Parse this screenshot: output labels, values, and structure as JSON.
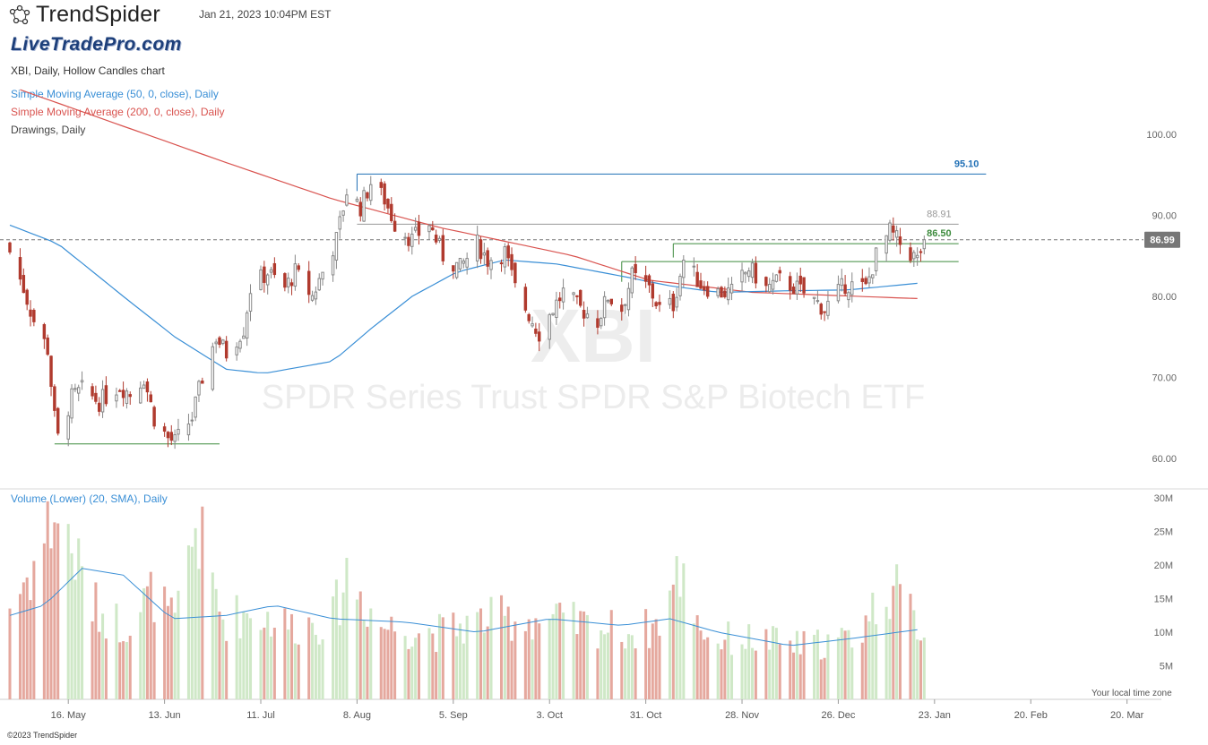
{
  "header": {
    "brand_name": "TrendSpider",
    "logo_icon": "trendspider-logo-icon",
    "timestamp": "Jan 21, 2023 10:04PM EST",
    "watermark_brand": "LiveTradePro.com",
    "chart_title": "XBI, Daily, Hollow Candles chart",
    "legend_sma50": "Simple Moving Average (50, 0, close), Daily",
    "legend_sma200": "Simple Moving Average (200, 0, close), Daily",
    "legend_drawings": "Drawings, Daily",
    "volume_title": "Volume (Lower) (20, SMA), Daily",
    "time_zone_note": "Your local time zone",
    "copyright": "©2023 TrendSpider"
  },
  "watermark": {
    "ticker": "XBI",
    "name": "SPDR Series Trust SPDR S&P Biotech ETF"
  },
  "colors": {
    "up": "#888888",
    "down": "#b03a2e",
    "sma50": "#3a8fd6",
    "sma200": "#d9534f",
    "vol_up": "#cfe8c7",
    "vol_down": "#e5a89e",
    "support": "#3d8b3d",
    "resist_blue": "#1f6fb5",
    "resist_gray": "#999999"
  },
  "chart_data": {
    "type": "candlestick",
    "price_axis": {
      "min": 60,
      "max": 100,
      "ticks": [
        100,
        90,
        80,
        70,
        60
      ],
      "tick_labels": [
        "100.00",
        "90.00",
        "80.00",
        "70.00",
        "60.00"
      ]
    },
    "volume_axis": {
      "min": 0,
      "max": 30,
      "unit": "M",
      "ticks": [
        30,
        25,
        20,
        15,
        10,
        5
      ],
      "tick_labels": [
        "30M",
        "25M",
        "20M",
        "15M",
        "10M",
        "5M"
      ]
    },
    "x_axis_labels": [
      {
        "label": "16. May",
        "date": "2022-05-16"
      },
      {
        "label": "13. Jun",
        "date": "2022-06-13"
      },
      {
        "label": "11. Jul",
        "date": "2022-07-11"
      },
      {
        "label": "8. Aug",
        "date": "2022-08-08"
      },
      {
        "label": "5. Sep",
        "date": "2022-09-05"
      },
      {
        "label": "3. Oct",
        "date": "2022-10-03"
      },
      {
        "label": "31. Oct",
        "date": "2022-10-31"
      },
      {
        "label": "28. Nov",
        "date": "2022-11-28"
      },
      {
        "label": "26. Dec",
        "date": "2022-12-26"
      },
      {
        "label": "23. Jan",
        "date": "2023-01-23"
      },
      {
        "label": "20. Feb",
        "date": "2023-02-20"
      },
      {
        "label": "20. Mar",
        "date": "2023-03-20"
      }
    ],
    "x_range": [
      "2022-04-29",
      "2023-03-30"
    ],
    "current_price": 86.99,
    "current_price_label": "86.99",
    "levels": [
      {
        "value": 95.1,
        "label": "95.10",
        "color": "#1f6fb5",
        "from": "2022-08-08",
        "to": "2023-02-07"
      },
      {
        "value": 88.91,
        "label": "88.91",
        "color": "#999999",
        "from": "2022-08-08",
        "to": "2023-01-30"
      },
      {
        "value": 86.5,
        "label": "86.50",
        "color": "#3d8b3d",
        "from": "2022-11-08",
        "to": "2023-01-30"
      },
      {
        "value": 84.3,
        "label": "",
        "color": "#3d8b3d",
        "from": "2022-10-24",
        "to": "2023-01-30"
      },
      {
        "value": 61.8,
        "label": "",
        "color": "#3d8b3d",
        "from": "2022-05-12",
        "to": "2022-06-29"
      }
    ],
    "price_anchors": [
      [
        "2022-04-29",
        85.5
      ],
      [
        "2022-05-03",
        81
      ],
      [
        "2022-05-06",
        77
      ],
      [
        "2022-05-10",
        73.5
      ],
      [
        "2022-05-12",
        65
      ],
      [
        "2022-05-13",
        62.5
      ],
      [
        "2022-05-17",
        67.5
      ],
      [
        "2022-05-20",
        68.5
      ],
      [
        "2022-05-25",
        67
      ],
      [
        "2022-05-31",
        69
      ],
      [
        "2022-06-03",
        68
      ],
      [
        "2022-06-07",
        70
      ],
      [
        "2022-06-10",
        65
      ],
      [
        "2022-06-14",
        62.5
      ],
      [
        "2022-06-16",
        62
      ],
      [
        "2022-06-21",
        65
      ],
      [
        "2022-06-24",
        70
      ],
      [
        "2022-06-28",
        75
      ],
      [
        "2022-07-01",
        73
      ],
      [
        "2022-07-06",
        76
      ],
      [
        "2022-07-08",
        81
      ],
      [
        "2022-07-13",
        83
      ],
      [
        "2022-07-18",
        81
      ],
      [
        "2022-07-21",
        83
      ],
      [
        "2022-07-26",
        80
      ],
      [
        "2022-07-29",
        83
      ],
      [
        "2022-08-02",
        87
      ],
      [
        "2022-08-05",
        93
      ],
      [
        "2022-08-09",
        91
      ],
      [
        "2022-08-12",
        94
      ],
      [
        "2022-08-16",
        92
      ],
      [
        "2022-08-19",
        89
      ],
      [
        "2022-08-24",
        87
      ],
      [
        "2022-08-29",
        89
      ],
      [
        "2022-09-02",
        85
      ],
      [
        "2022-09-07",
        83.5
      ],
      [
        "2022-09-12",
        86.5
      ],
      [
        "2022-09-15",
        84.5
      ],
      [
        "2022-09-20",
        85.5
      ],
      [
        "2022-09-23",
        81
      ],
      [
        "2022-09-28",
        77
      ],
      [
        "2022-09-30",
        75.5
      ],
      [
        "2022-10-04",
        78.5
      ],
      [
        "2022-10-07",
        80.5
      ],
      [
        "2022-10-12",
        78.5
      ],
      [
        "2022-10-17",
        77
      ],
      [
        "2022-10-20",
        80
      ],
      [
        "2022-10-24",
        78.5
      ],
      [
        "2022-10-27",
        82.5
      ],
      [
        "2022-11-01",
        81
      ],
      [
        "2022-11-04",
        78.5
      ],
      [
        "2022-11-08",
        79
      ],
      [
        "2022-11-11",
        84.5
      ],
      [
        "2022-11-16",
        81.5
      ],
      [
        "2022-11-21",
        80.5
      ],
      [
        "2022-11-25",
        80.5
      ],
      [
        "2022-11-30",
        83.5
      ],
      [
        "2022-12-05",
        81
      ],
      [
        "2022-12-09",
        82
      ],
      [
        "2022-12-14",
        81
      ],
      [
        "2022-12-19",
        79.5
      ],
      [
        "2022-12-22",
        78.5
      ],
      [
        "2022-12-28",
        81.5
      ],
      [
        "2023-01-03",
        81
      ],
      [
        "2023-01-06",
        85
      ],
      [
        "2023-01-10",
        88
      ],
      [
        "2023-01-13",
        86.5
      ],
      [
        "2023-01-18",
        84.5
      ],
      [
        "2023-01-20",
        86.99
      ]
    ],
    "sma50": [
      [
        "2022-04-29",
        88.8
      ],
      [
        "2022-05-13",
        86.5
      ],
      [
        "2022-06-01",
        80
      ],
      [
        "2022-06-16",
        75
      ],
      [
        "2022-07-01",
        71
      ],
      [
        "2022-07-12",
        70.5
      ],
      [
        "2022-08-01",
        72
      ],
      [
        "2022-08-12",
        76
      ],
      [
        "2022-08-24",
        80
      ],
      [
        "2022-09-06",
        83
      ],
      [
        "2022-09-20",
        84.5
      ],
      [
        "2022-10-05",
        84
      ],
      [
        "2022-10-24",
        82.5
      ],
      [
        "2022-11-07",
        81.3
      ],
      [
        "2022-11-21",
        80.5
      ],
      [
        "2022-12-12",
        80.7
      ],
      [
        "2022-12-29",
        80.8
      ],
      [
        "2023-01-20",
        81.7
      ]
    ],
    "sma200": [
      [
        "2022-05-02",
        105.5
      ],
      [
        "2022-06-01",
        101
      ],
      [
        "2022-07-01",
        96.5
      ],
      [
        "2022-08-01",
        92
      ],
      [
        "2022-09-01",
        88.5
      ],
      [
        "2022-09-20",
        86.8
      ],
      [
        "2022-10-10",
        85
      ],
      [
        "2022-11-01",
        82
      ],
      [
        "2022-12-01",
        80.5
      ],
      [
        "2023-01-20",
        79.7
      ]
    ],
    "volume_anchors": [
      [
        "2022-04-29",
        14
      ],
      [
        "2022-05-06",
        20
      ],
      [
        "2022-05-12",
        28
      ],
      [
        "2022-05-16",
        24
      ],
      [
        "2022-05-23",
        14
      ],
      [
        "2022-06-01",
        11
      ],
      [
        "2022-06-10",
        16
      ],
      [
        "2022-06-16",
        11
      ],
      [
        "2022-06-22",
        26
      ],
      [
        "2022-06-30",
        12
      ],
      [
        "2022-07-08",
        13
      ],
      [
        "2022-07-20",
        11
      ],
      [
        "2022-08-01",
        12
      ],
      [
        "2022-08-05",
        19
      ],
      [
        "2022-08-15",
        11
      ],
      [
        "2022-09-01",
        10
      ],
      [
        "2022-09-15",
        12
      ],
      [
        "2022-09-30",
        12
      ],
      [
        "2022-10-14",
        11
      ],
      [
        "2022-10-28",
        10
      ],
      [
        "2022-11-03",
        11
      ],
      [
        "2022-11-10",
        19
      ],
      [
        "2022-11-18",
        9
      ],
      [
        "2022-12-01",
        9
      ],
      [
        "2022-12-15",
        8
      ],
      [
        "2022-12-30",
        9
      ],
      [
        "2023-01-10",
        17
      ],
      [
        "2023-01-20",
        10
      ]
    ],
    "volume_sma": [
      [
        "2022-04-29",
        12.5
      ],
      [
        "2022-05-09",
        14
      ],
      [
        "2022-05-20",
        19.5
      ],
      [
        "2022-06-01",
        18.5
      ],
      [
        "2022-06-15",
        12
      ],
      [
        "2022-07-01",
        12.5
      ],
      [
        "2022-07-15",
        14
      ],
      [
        "2022-08-01",
        12
      ],
      [
        "2022-08-22",
        11.5
      ],
      [
        "2022-09-12",
        10
      ],
      [
        "2022-10-03",
        12
      ],
      [
        "2022-10-24",
        11
      ],
      [
        "2022-11-07",
        12
      ],
      [
        "2022-11-21",
        10
      ],
      [
        "2022-12-12",
        8
      ],
      [
        "2022-12-29",
        9
      ],
      [
        "2023-01-20",
        10.5
      ]
    ]
  }
}
